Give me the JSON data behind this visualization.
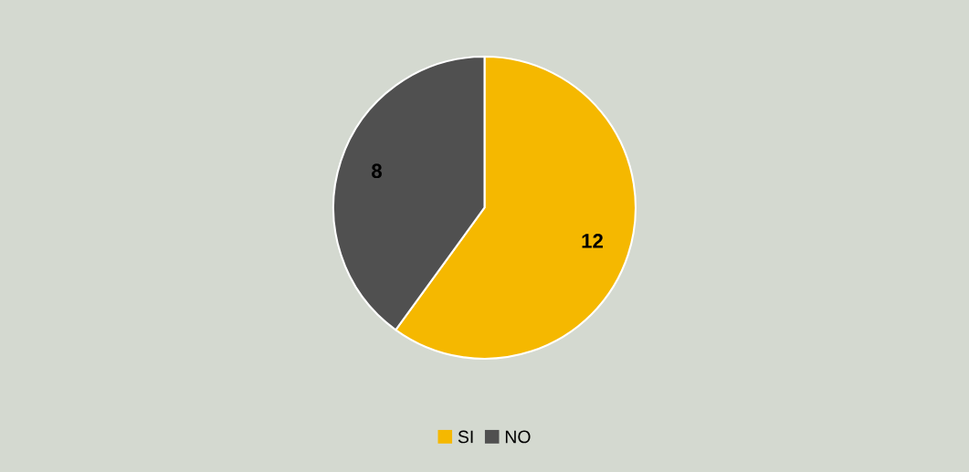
{
  "chart_data": {
    "type": "pie",
    "categories": [
      "SI",
      "NO"
    ],
    "values": [
      12,
      8
    ],
    "colors": [
      "#f5b800",
      "#505050"
    ],
    "data_labels": true,
    "legend": "bottom"
  }
}
